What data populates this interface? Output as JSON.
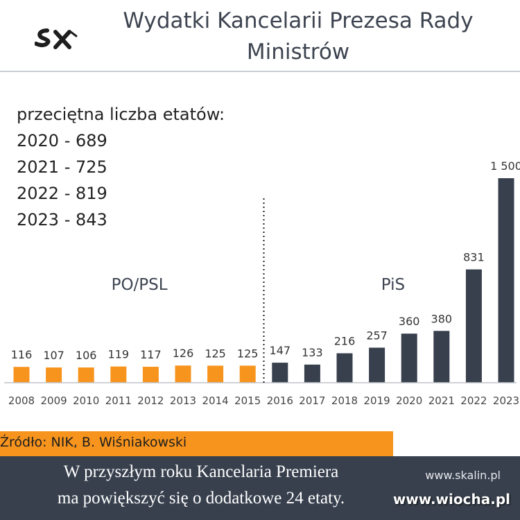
{
  "logo": {
    "name": "skalin-logo"
  },
  "header": {
    "title_line1": "Wydatki Kancelarii Prezesa Rady",
    "title_line2": "Ministrów"
  },
  "stats": [
    "przeciętna liczba etatów:",
    "2020 - 689",
    "2021 - 725",
    "2022 - 819",
    "2023 - 843"
  ],
  "chart_data": {
    "type": "bar",
    "title": "Wydatki Kancelarii Prezesa Rady Ministrów",
    "xlabel": "",
    "ylabel": "",
    "categories": [
      "2008",
      "2009",
      "2010",
      "2011",
      "2012",
      "2013",
      "2014",
      "2015",
      "2016",
      "2017",
      "2018",
      "2019",
      "2020",
      "2021",
      "2022",
      "2023"
    ],
    "values": [
      116,
      107,
      106,
      119,
      117,
      126,
      125,
      125,
      147,
      133,
      216,
      257,
      360,
      380,
      831,
      1500
    ],
    "data_labels": [
      "116",
      "107",
      "106",
      "119",
      "117",
      "126",
      "125",
      "125",
      "147",
      "133",
      "216",
      "257",
      "360",
      "380",
      "831",
      "1 500"
    ],
    "groups": [
      {
        "label": "PO/PSL",
        "from": "2008",
        "to": "2015",
        "color": "#f7941d"
      },
      {
        "label": "PiS",
        "from": "2016",
        "to": "2023",
        "color": "#38404e"
      }
    ],
    "divider_between": [
      "2015",
      "2016"
    ],
    "ylim": [
      0,
      1500
    ],
    "grid": false,
    "legend": "none"
  },
  "source": {
    "text": "Źródło: NIK, B. Wiśniakowski"
  },
  "footer": {
    "line1": "W przyszłym roku Kancelaria Premiera",
    "line2": "ma powiększyć się o dodatkowe 24 etaty.",
    "site": "www.skalin.pl",
    "watermark": "www.wiocha.pl"
  },
  "colors": {
    "orange": "#f7941d",
    "navy": "#38404e",
    "title": "#3d4450"
  }
}
